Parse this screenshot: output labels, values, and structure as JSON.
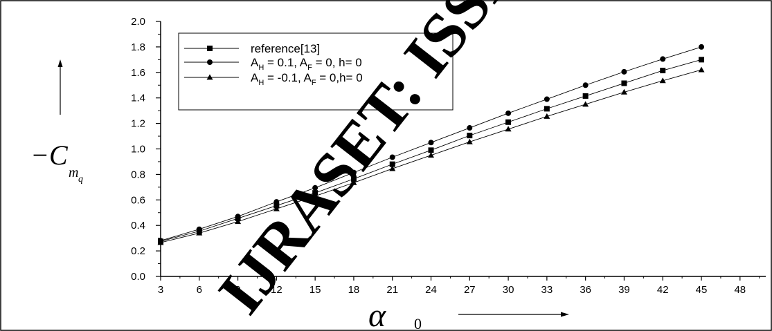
{
  "chart_data": {
    "type": "line",
    "xlabel": "α",
    "xlabel_sub": "0",
    "ylabel": "−C",
    "ylabel_sub": "m",
    "ylabel_subsub": "q",
    "xlim": [
      3,
      50
    ],
    "ylim": [
      0.0,
      2.0
    ],
    "xticks": [
      3,
      6,
      9,
      12,
      15,
      18,
      21,
      24,
      27,
      30,
      33,
      36,
      39,
      42,
      45,
      48
    ],
    "yticks": [
      0.0,
      0.2,
      0.4,
      0.6,
      0.8,
      1.0,
      1.2,
      1.4,
      1.6,
      1.8,
      2.0
    ],
    "x": [
      3,
      6,
      9,
      12,
      15,
      18,
      21,
      24,
      27,
      30,
      33,
      36,
      39,
      42,
      45
    ],
    "legend_position": "top-left",
    "grid": false,
    "series": [
      {
        "name": "reference[13]",
        "marker": "square",
        "values": [
          0.275,
          0.355,
          0.455,
          0.555,
          0.655,
          0.765,
          0.88,
          0.99,
          1.105,
          1.21,
          1.315,
          1.415,
          1.515,
          1.615,
          1.7
        ]
      },
      {
        "name_parts": [
          "A",
          "H",
          " = 0.1, A",
          "F",
          " = 0, h= 0"
        ],
        "marker": "circle",
        "values": [
          0.28,
          0.37,
          0.47,
          0.585,
          0.695,
          0.815,
          0.935,
          1.05,
          1.165,
          1.28,
          1.39,
          1.5,
          1.605,
          1.705,
          1.8
        ]
      },
      {
        "name_parts": [
          "A",
          "H",
          " = -0.1, A",
          "F",
          " = 0,h= 0"
        ],
        "marker": "triangle",
        "values": [
          0.265,
          0.34,
          0.43,
          0.53,
          0.63,
          0.735,
          0.845,
          0.95,
          1.055,
          1.155,
          1.255,
          1.35,
          1.445,
          1.535,
          1.62
        ]
      }
    ]
  },
  "watermark": {
    "text": "IJRASET: ISSN:",
    "color": "#ee1111"
  }
}
